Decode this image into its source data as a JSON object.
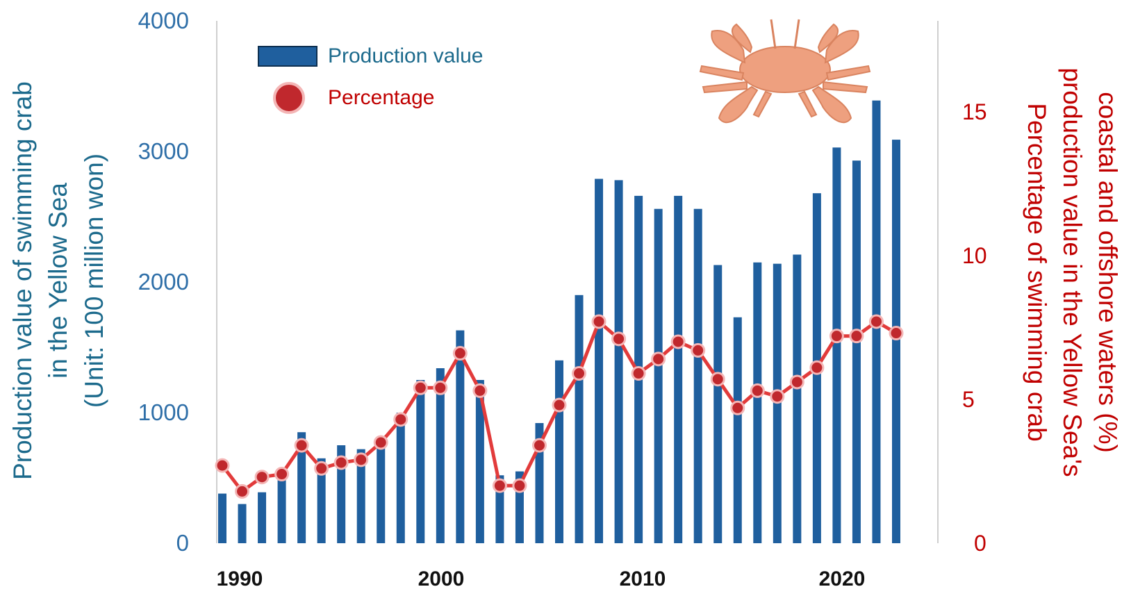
{
  "chart_data": {
    "type": "bar",
    "x": [
      1990,
      1991,
      1992,
      1993,
      1994,
      1995,
      1996,
      1997,
      1998,
      1999,
      2000,
      2001,
      2002,
      2003,
      2004,
      2005,
      2006,
      2007,
      2008,
      2009,
      2010,
      2011,
      2012,
      2013,
      2014,
      2015,
      2016,
      2017,
      2018,
      2019,
      2020,
      2021,
      2022,
      2023,
      2024
    ],
    "x_tick_labels": [
      "1990",
      "2000",
      "2010",
      "2020"
    ],
    "x_tick_values": [
      1990,
      2000,
      2010,
      2020
    ],
    "series": [
      {
        "name": "Production value",
        "type": "bar",
        "axis": "left",
        "color": "#1f5f9e",
        "values": [
          380,
          300,
          390,
          500,
          850,
          650,
          750,
          720,
          730,
          1000,
          1250,
          1340,
          1630,
          1250,
          520,
          550,
          920,
          1400,
          1900,
          2790,
          2780,
          2660,
          2560,
          2660,
          2560,
          2130,
          1730,
          2150,
          2140,
          2210,
          2680,
          3030,
          2930,
          3390,
          3090
        ]
      },
      {
        "name": "Percentage",
        "type": "line",
        "axis": "right",
        "color": "#c0282d",
        "values": [
          2.7,
          1.8,
          2.3,
          2.4,
          3.4,
          2.6,
          2.8,
          2.9,
          3.5,
          4.3,
          5.4,
          5.4,
          6.6,
          5.3,
          2.0,
          2.0,
          3.4,
          4.8,
          5.9,
          7.7,
          7.1,
          5.9,
          6.4,
          7.0,
          6.7,
          5.7,
          4.7,
          5.3,
          5.1,
          5.6,
          6.1,
          7.2,
          7.2,
          7.7,
          7.3
        ]
      }
    ],
    "y_left": {
      "label_lines": [
        "Production value of swimming crab",
        "in the Yellow Sea",
        "(Unit: 100 million won)"
      ],
      "ticks": [
        0,
        1000,
        2000,
        3000,
        4000
      ],
      "tick_labels": [
        "0",
        "1000",
        "2000",
        "3000",
        "4000"
      ],
      "range": [
        0,
        4000
      ]
    },
    "y_right": {
      "label_lines": [
        "Percentage of swimming crab",
        "production value in the Yellow Sea's",
        "coastal and offshore waters (%)"
      ],
      "ticks": [
        0,
        5,
        10,
        15
      ],
      "tick_labels": [
        "0",
        "5",
        "10",
        "15"
      ],
      "range": [
        0,
        18.15
      ]
    },
    "legend": {
      "position": "top-left",
      "items": [
        {
          "label": "Production value",
          "marker": "bar",
          "color": "#1f5f9e"
        },
        {
          "label": "Percentage",
          "marker": "circle",
          "color": "#c0282d"
        }
      ]
    },
    "colors": {
      "left_axis_text": "#1c6a8c",
      "right_axis_text": "#c00000",
      "crab_illustration": "#eea07f"
    },
    "grid": false
  }
}
